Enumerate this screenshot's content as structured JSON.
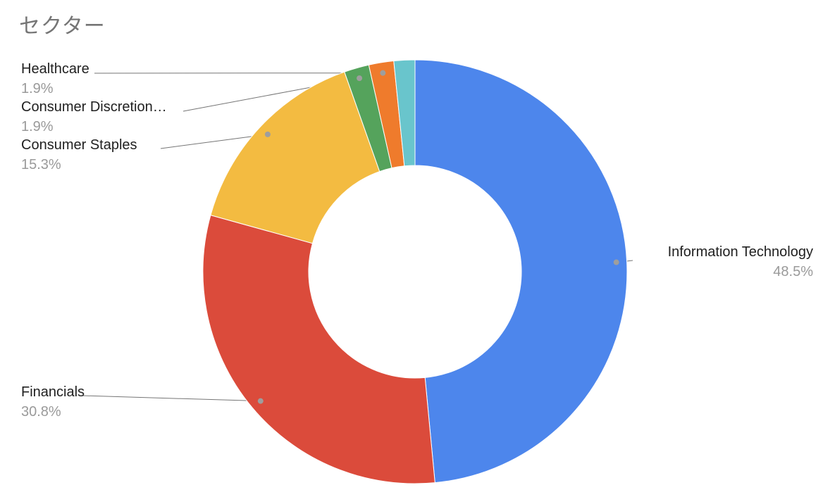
{
  "title": "セクター",
  "chart_data": {
    "type": "pie",
    "subtype": "donut",
    "title": "セクター",
    "total": 100,
    "legend_position": "labeled-callouts",
    "background": "#ffffff",
    "colors": {
      "blue": "#4d86ec",
      "red": "#db4b3b",
      "yellow": "#f3bb41",
      "green": "#55a35c",
      "orange": "#ef7b2c",
      "teal": "#69c5cc",
      "callout_line": "#757575",
      "callout_dot": "#9e9e9e",
      "label_text": "#212121",
      "percent_text": "#9a9a9a",
      "title_text": "#757575"
    },
    "slices": [
      {
        "id": "information-technology",
        "label": "Information Technology",
        "percent_label": "48.5%",
        "value": 48.5,
        "color": "#4d86ec",
        "labeled": true
      },
      {
        "id": "financials",
        "label": "Financials",
        "percent_label": "30.8%",
        "value": 30.8,
        "color": "#db4b3b",
        "labeled": true
      },
      {
        "id": "consumer-staples",
        "label": "Consumer Staples",
        "percent_label": "15.3%",
        "value": 15.3,
        "color": "#f3bb41",
        "labeled": true
      },
      {
        "id": "consumer-discretionary",
        "label": "Consumer Discretion…",
        "percent_label": "1.9%",
        "value": 1.9,
        "color": "#55a35c",
        "labeled": true
      },
      {
        "id": "healthcare",
        "label": "Healthcare",
        "percent_label": "1.9%",
        "value": 1.9,
        "color": "#ef7b2c",
        "labeled": true
      },
      {
        "id": "unlabeled-remainder",
        "label": "",
        "percent_label": "",
        "value": 1.6,
        "color": "#69c5cc",
        "labeled": false
      }
    ]
  }
}
